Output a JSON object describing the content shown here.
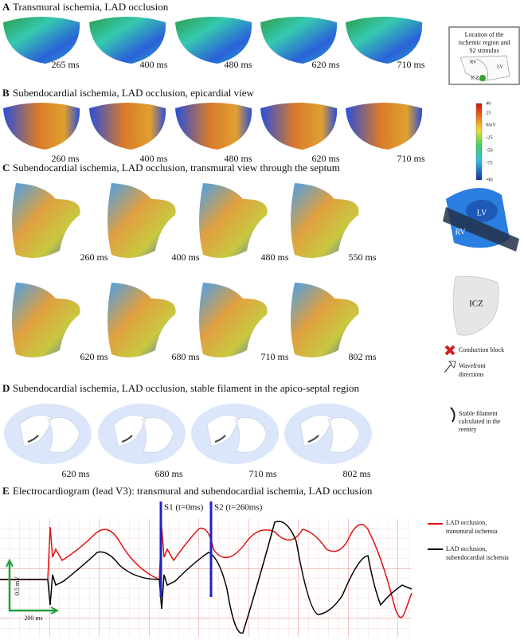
{
  "panels": [
    {
      "letter": "A",
      "title": "Transmural ischemia, LAD occlusion",
      "times": [
        "265 ms",
        "400 ms",
        "480 ms",
        "620 ms",
        "710 ms"
      ]
    },
    {
      "letter": "B",
      "title": "Subendocardial ischemia, LAD occlusion, epicardial view",
      "times": [
        "260 ms",
        "400 ms",
        "480 ms",
        "620 ms",
        "710 ms"
      ]
    },
    {
      "letter": "C",
      "title": "Subendocardial ischemia, LAD occlusion, transmural view through the septum",
      "times": [
        "260 ms",
        "400 ms",
        "480 ms",
        "550 ms",
        "620 ms",
        "680 ms",
        "710 ms",
        "802 ms"
      ]
    },
    {
      "letter": "D",
      "title": "Subendocardial ischemia, LAD occlusion, stable filament in the apico-septal region",
      "times": [
        "620 ms",
        "680 ms",
        "710 ms",
        "802 ms"
      ]
    },
    {
      "letter": "E",
      "title": "Electrocardiogram (lead V3): transmural and subendocardial ischemia, LAD occlusion"
    }
  ],
  "inset": {
    "lines": [
      "Location of the",
      "ischemic region and",
      "S2 stimulus"
    ],
    "labels": [
      "RV",
      "LV",
      "ICZ"
    ]
  },
  "colorbar": {
    "labels": [
      "40",
      "25",
      "0mV",
      "-25",
      "-50",
      "-75",
      "-90"
    ]
  },
  "septum_views": {
    "labels": [
      "LV",
      "RV",
      "ICZ"
    ]
  },
  "legend_c": {
    "block": "Conduction block",
    "wavefront": [
      "Wavefront",
      "directions"
    ]
  },
  "legend_d": [
    "Stable filament",
    "calculated in the",
    "reentry"
  ],
  "ecg": {
    "stimuli": [
      "S1 (t=0ms)",
      "S2 (t=260ms)"
    ],
    "scale": {
      "voltage": "0.5 mV",
      "time": "200 ms"
    },
    "legend": [
      [
        "LAD occlusion,",
        "transmural ischemia"
      ],
      [
        "LAD occlusion,",
        "subendocardial ischemia"
      ]
    ]
  }
}
